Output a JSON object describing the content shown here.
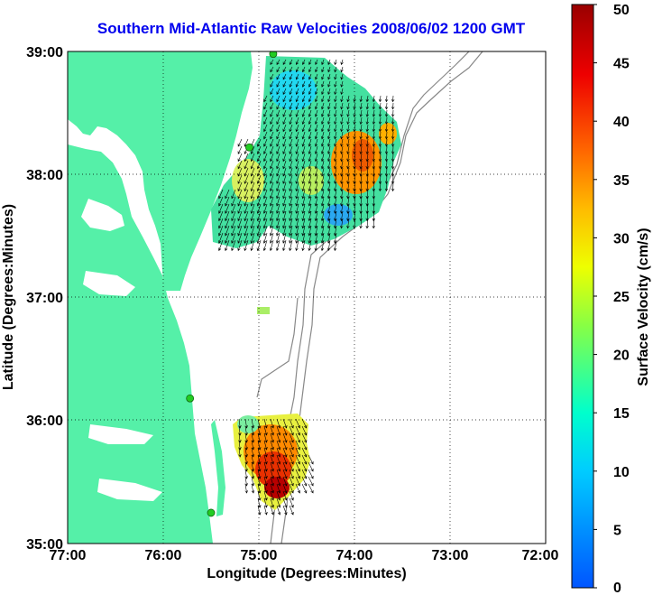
{
  "title": "Southern Mid-Atlantic Raw Velocities 2008/06/02 1200 GMT",
  "xlabel": "Longitude (Degrees:Minutes)",
  "ylabel": "Latitude (Degrees:Minutes)",
  "colorbar_label": "Surface Velocity (cm/s)",
  "x_ticks": [
    "77:00",
    "76:00",
    "75:00",
    "74:00",
    "73:00",
    "72:00"
  ],
  "y_ticks": [
    "39:00",
    "38:00",
    "37:00",
    "36:00",
    "35:00"
  ],
  "colorbar_ticks": [
    "0",
    "5",
    "10",
    "15",
    "20",
    "25",
    "30",
    "35",
    "40",
    "45",
    "50"
  ],
  "colors": {
    "land": "#55f0a8",
    "title": "#0000ee",
    "station": "#22cc22"
  },
  "map_data": {
    "lon_range": [
      -77,
      -72
    ],
    "lat_range": [
      35,
      39
    ],
    "colorbar_range": [
      0,
      50
    ],
    "stations": [
      {
        "lon": -74.85,
        "lat": 38.98
      },
      {
        "lon": -75.1,
        "lat": 38.22
      },
      {
        "lon": -75.72,
        "lat": 36.18
      },
      {
        "lon": -75.5,
        "lat": 35.25
      }
    ]
  }
}
